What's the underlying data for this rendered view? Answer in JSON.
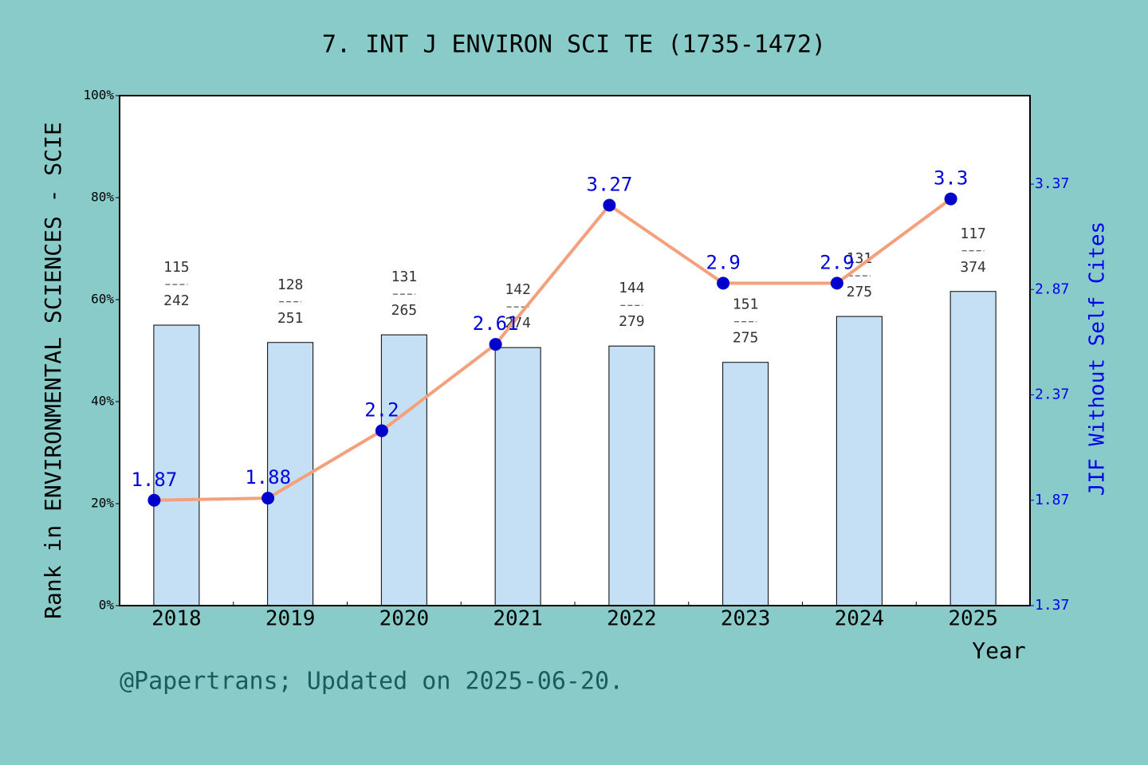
{
  "chart_data": {
    "type": "bar-line",
    "title": "7. INT J ENVIRON SCI TE (1735-1472)",
    "y_label": "Rank in ENVIRONMENTAL SCIENCES - SCIE",
    "y2_label": "JIF Without Self Cites",
    "x_label": "Year",
    "footer": "@Papertrans; Updated on 2025-06-20.",
    "categories": [
      "2018",
      "2019",
      "2020",
      "2021",
      "2022",
      "2023",
      "2024",
      "2025"
    ],
    "series": [
      {
        "name": "Rank",
        "type": "bar",
        "color": "#c5e0f5",
        "values": [
          55.0,
          51.6,
          53.1,
          50.6,
          50.9,
          47.7,
          56.7,
          61.6
        ],
        "ranks": [
          115,
          128,
          131,
          142,
          144,
          151,
          131,
          117
        ],
        "totals": [
          242,
          251,
          265,
          274,
          279,
          275,
          275,
          374
        ]
      },
      {
        "name": "JIF",
        "type": "line",
        "axis": "y2",
        "color": "#f4a07a",
        "marker_color": "#0000cc",
        "values": [
          1.87,
          1.88,
          2.2,
          2.61,
          3.27,
          2.9,
          2.9,
          3.3
        ]
      }
    ],
    "ylim": [
      0,
      100
    ],
    "yticks": [
      {
        "value": 0,
        "label": "0%"
      },
      {
        "value": 20,
        "label": "20%"
      },
      {
        "value": 40,
        "label": "40%"
      },
      {
        "value": 60,
        "label": "60%"
      },
      {
        "value": 80,
        "label": "80%"
      },
      {
        "value": 100,
        "label": "100%"
      }
    ],
    "y2lim": [
      1.37,
      3.79
    ],
    "y2ticks": [
      1.37,
      1.87,
      2.37,
      2.87,
      3.37
    ]
  }
}
